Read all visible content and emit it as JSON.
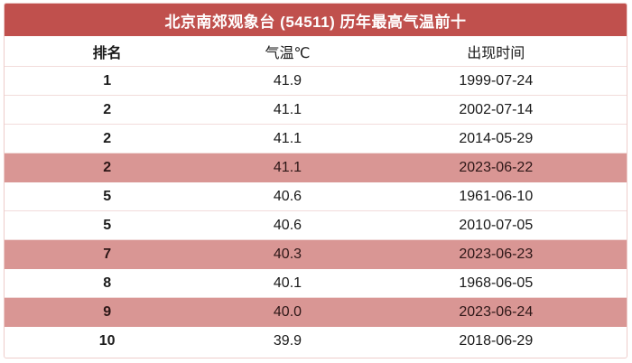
{
  "title": "北京南郊观象台 (54511) 历年最高气温前十",
  "columns": {
    "rank": "排名",
    "temperature": "气温℃",
    "date": "出现时间"
  },
  "rows": [
    {
      "rank": "1",
      "temp": "41.9",
      "date": "1999-07-24",
      "highlight": false
    },
    {
      "rank": "2",
      "temp": "41.1",
      "date": "2002-07-14",
      "highlight": false
    },
    {
      "rank": "2",
      "temp": "41.1",
      "date": "2014-05-29",
      "highlight": false
    },
    {
      "rank": "2",
      "temp": "41.1",
      "date": "2023-06-22",
      "highlight": true
    },
    {
      "rank": "5",
      "temp": "40.6",
      "date": "1961-06-10",
      "highlight": false
    },
    {
      "rank": "5",
      "temp": "40.6",
      "date": "2010-07-05",
      "highlight": false
    },
    {
      "rank": "7",
      "temp": "40.3",
      "date": "2023-06-23",
      "highlight": true
    },
    {
      "rank": "8",
      "temp": "40.1",
      "date": "1968-06-05",
      "highlight": false
    },
    {
      "rank": "9",
      "temp": "40.0",
      "date": "2023-06-24",
      "highlight": true
    },
    {
      "rank": "10",
      "temp": "39.9",
      "date": "2018-06-29",
      "highlight": false
    }
  ],
  "colors": {
    "header_bg": "#c0504d",
    "title_text": "#ffffff",
    "highlight_bg": "#d99694",
    "row_border": "#f2dcdb",
    "outer_border": "#eecdcb",
    "body_text": "#1a1a1a"
  }
}
